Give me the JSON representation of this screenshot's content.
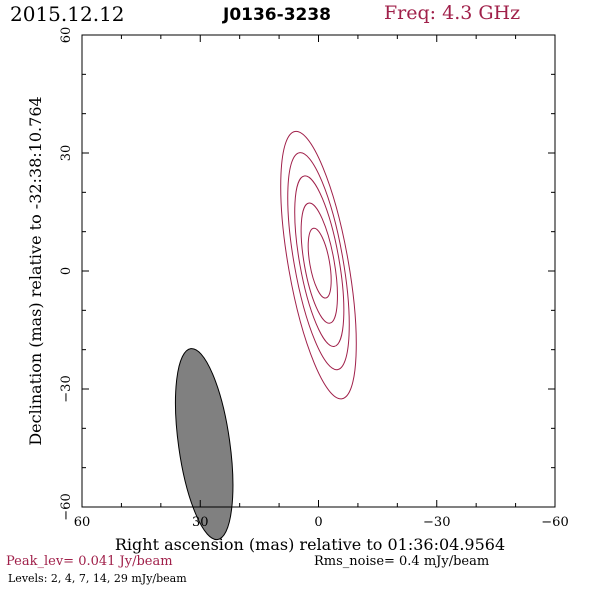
{
  "header": {
    "date": "2015.12.12",
    "source": "J0136-3238",
    "freq": "Freq: 4.3 GHz"
  },
  "footer": {
    "peak": "Peak_lev=  0.041 Jy/beam",
    "rms": "Rms_noise=   0.4 mJy/beam",
    "levels": "Levels:   2,    4,    7,   14,   29 mJy/beam"
  },
  "colors": {
    "contour": "#a0204a",
    "beam_fill": "#808080",
    "axes": "#000000"
  },
  "chart_data": {
    "type": "contour",
    "title": "J0136-3238",
    "xlabel": "Right ascension (mas) relative to 01:36:04.9564",
    "ylabel": "Declination (mas) relative to -32:38:10.764",
    "xlim": [
      60,
      -60
    ],
    "ylim": [
      -60,
      60
    ],
    "xticks": [
      60,
      30,
      0,
      -30,
      -60
    ],
    "yticks": [
      -60,
      -30,
      0,
      30,
      60
    ],
    "xtick_labels": [
      "60",
      "30",
      "0",
      "−30",
      "−60"
    ],
    "ytick_labels": [
      "−60",
      "−30",
      "0",
      "30",
      "60"
    ],
    "levels_mJy": [
      2,
      4,
      7,
      14,
      29
    ],
    "peak_Jy_per_beam": 0.041,
    "rms_mJy_per_beam": 0.4,
    "contours": [
      {
        "level": 2,
        "center": [
          0.0,
          1.5
        ],
        "a": 7.6,
        "b": 34.5,
        "pa_deg": -10
      },
      {
        "level": 4,
        "center": [
          0.0,
          2.5
        ],
        "a": 6.2,
        "b": 28.0,
        "pa_deg": -10
      },
      {
        "level": 7,
        "center": [
          -0.2,
          2.5
        ],
        "a": 5.0,
        "b": 22.0,
        "pa_deg": -10
      },
      {
        "level": 14,
        "center": [
          -0.2,
          2.0
        ],
        "a": 3.8,
        "b": 15.5,
        "pa_deg": -10
      },
      {
        "level": 29,
        "center": [
          -0.3,
          2.0
        ],
        "a": 2.5,
        "b": 9.0,
        "pa_deg": -10
      }
    ],
    "beam": {
      "center": [
        29.0,
        -44.0
      ],
      "major": 24.5,
      "minor": 6.5,
      "pa_deg": -8
    }
  }
}
